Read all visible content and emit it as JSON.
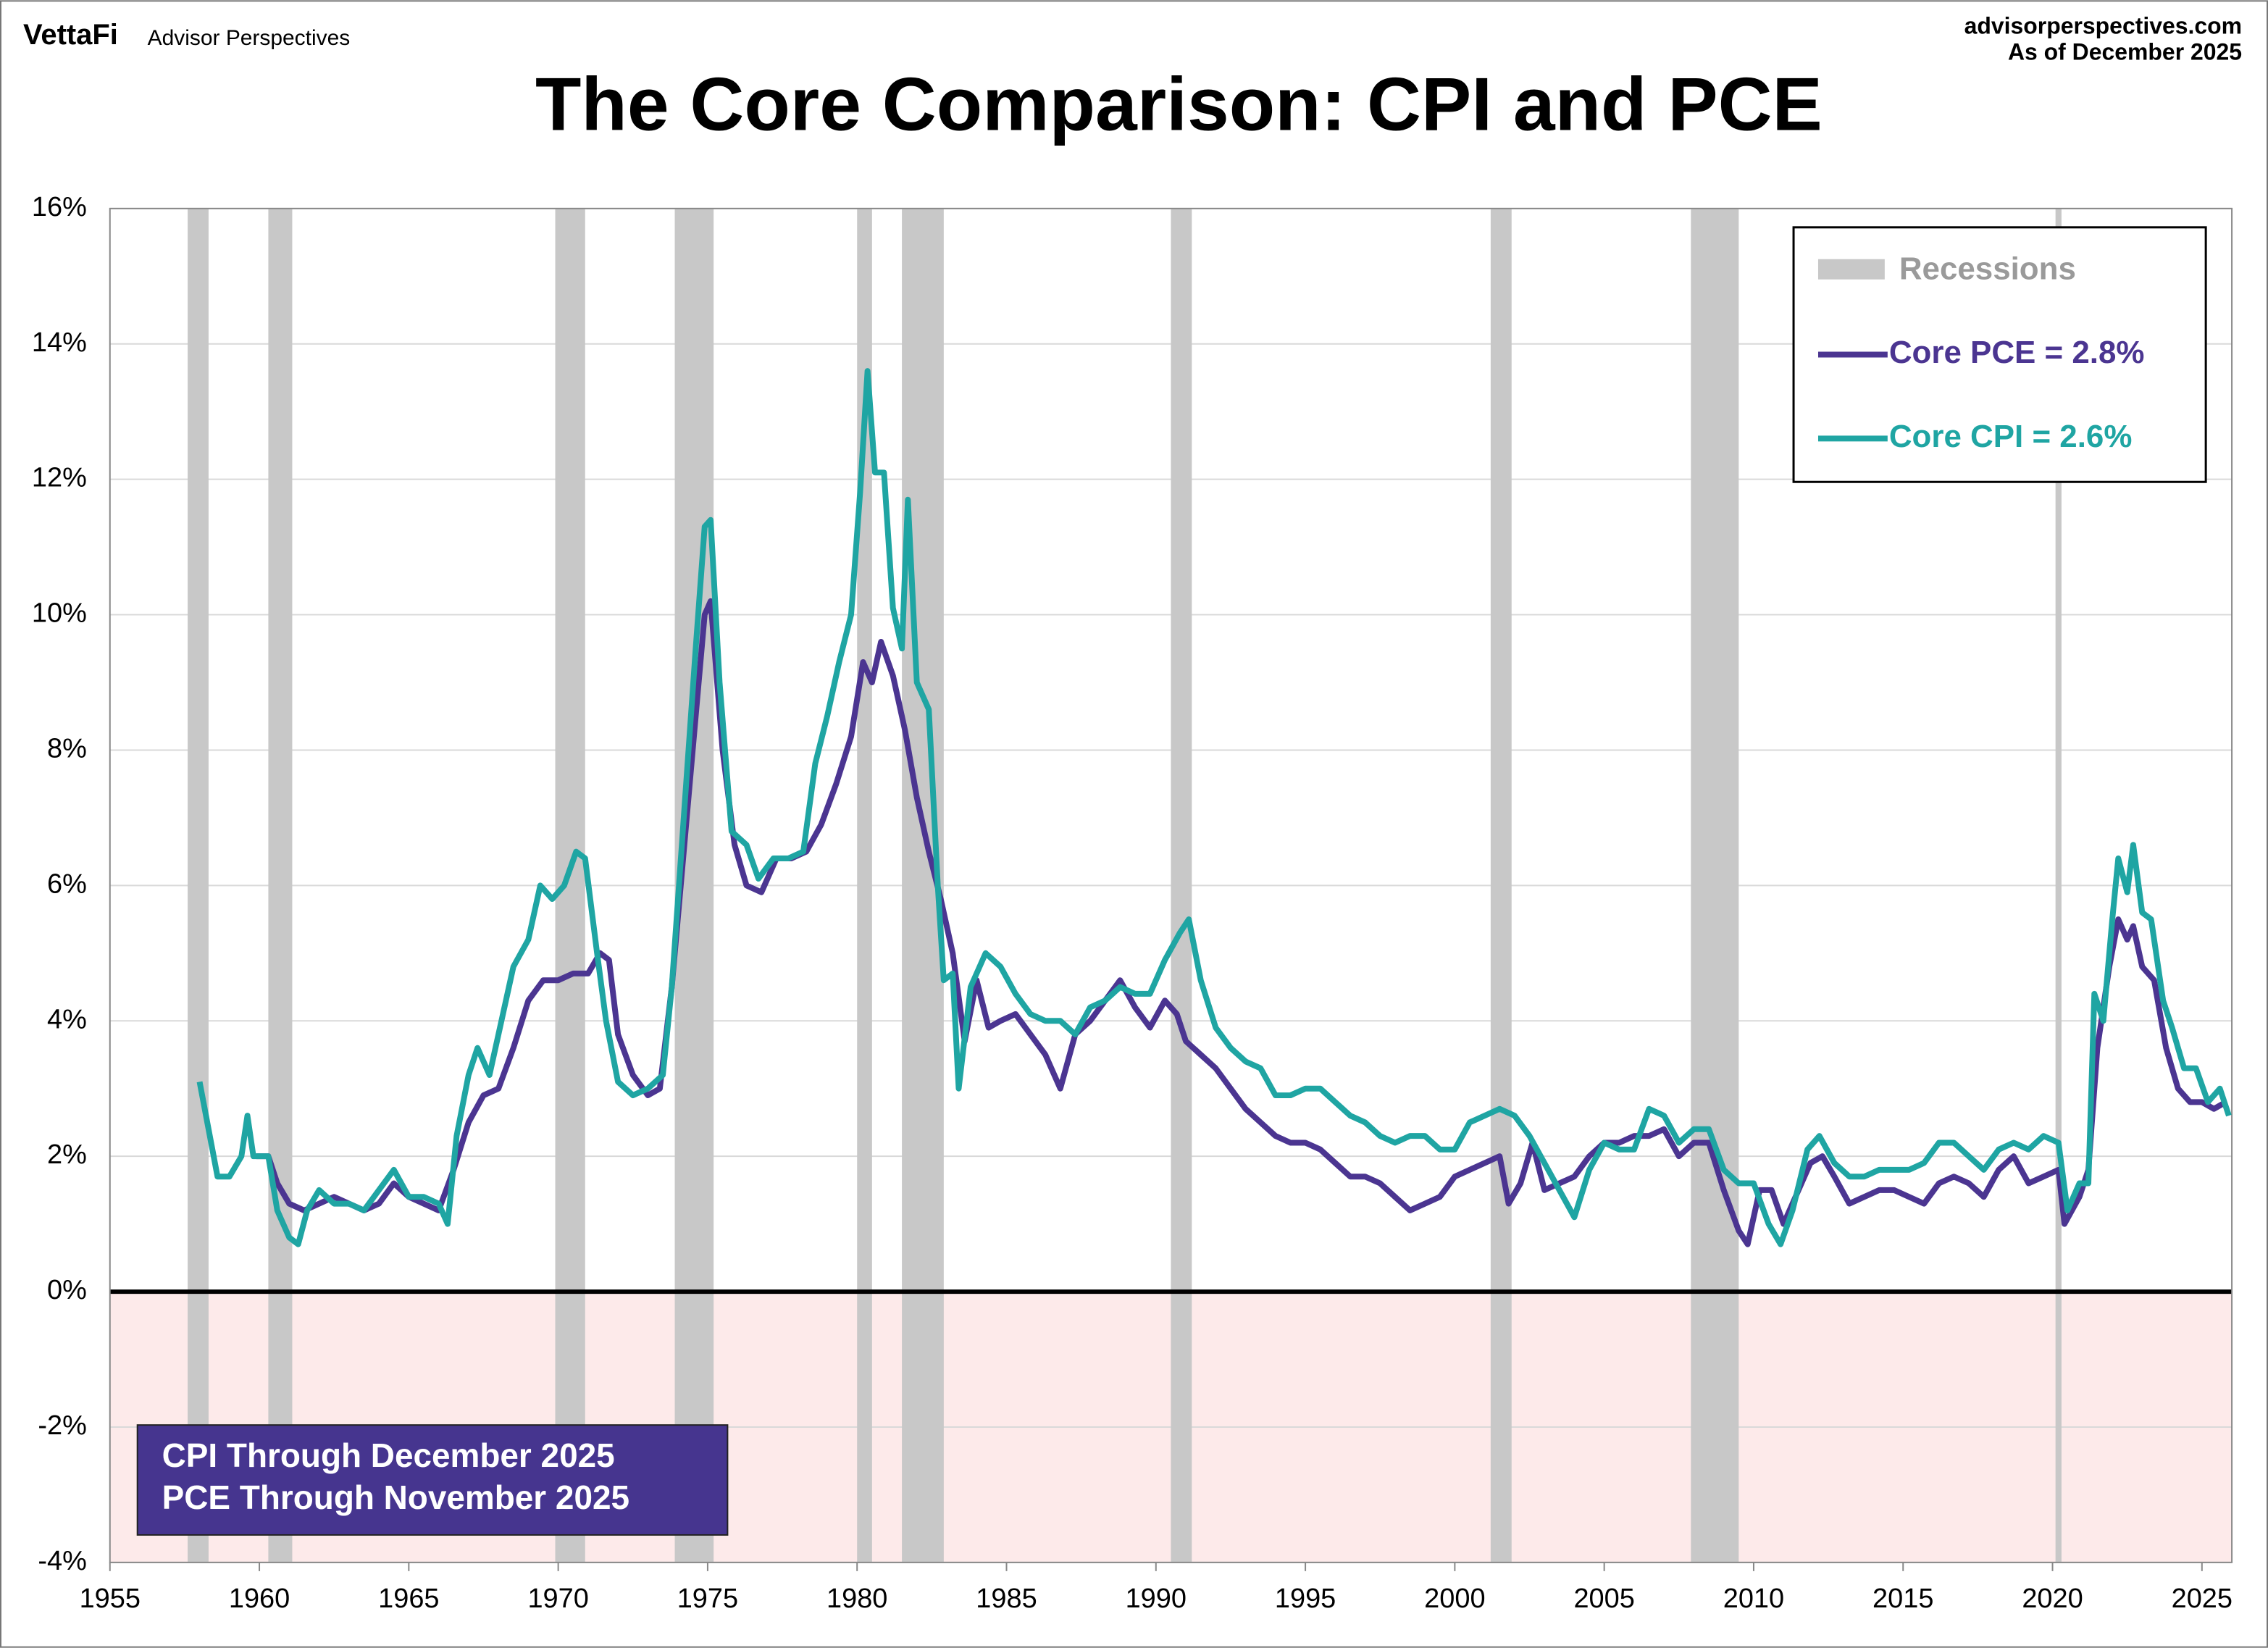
{
  "header": {
    "brand": "VettaFi",
    "brand_sub": "Advisor Perspectives",
    "site": "advisorperspectives.com",
    "as_of": "As of December 2025"
  },
  "chart_data": {
    "type": "line",
    "title": "The Core Comparison: CPI and PCE",
    "xlim": [
      1955,
      2026
    ],
    "xticks": [
      1955,
      1960,
      1965,
      1970,
      1975,
      1980,
      1985,
      1990,
      1995,
      2000,
      2005,
      2010,
      2015,
      2020,
      2025
    ],
    "ylim": [
      -4,
      16
    ],
    "yticks": [
      {
        "value": -4,
        "label": "-4%"
      },
      {
        "value": -2,
        "label": "-2%"
      },
      {
        "value": 0,
        "label": "0%"
      },
      {
        "value": 2,
        "label": "2%"
      },
      {
        "value": 4,
        "label": "4%"
      },
      {
        "value": 6,
        "label": "6%"
      },
      {
        "value": 8,
        "label": "8%"
      },
      {
        "value": 10,
        "label": "10%"
      },
      {
        "value": 12,
        "label": "12%"
      },
      {
        "value": 14,
        "label": "14%"
      },
      {
        "value": 16,
        "label": "16%"
      }
    ],
    "grid": true,
    "legend": "upper right",
    "recession_label": "Recessions",
    "recession_color": "#c8c8c8",
    "recessions": [
      [
        1957.6,
        1958.3
      ],
      [
        1960.3,
        1961.1
      ],
      [
        1969.9,
        1970.9
      ],
      [
        1973.9,
        1975.2
      ],
      [
        1980.0,
        1980.5
      ],
      [
        1981.5,
        1982.9
      ],
      [
        1990.5,
        1991.2
      ],
      [
        2001.2,
        2001.9
      ],
      [
        2007.9,
        2009.5
      ],
      [
        2020.1,
        2020.3
      ]
    ],
    "note": [
      "CPI Through December 2025",
      "PCE Through November 2025"
    ],
    "series": [
      {
        "name": "Core PCE = 2.8%",
        "color": "#4b3591",
        "x": [
          1959.9,
          1960.3,
          1960.6,
          1961.0,
          1961.5,
          1962.0,
          1962.5,
          1963.0,
          1963.5,
          1964.0,
          1964.5,
          1965.0,
          1965.5,
          1966.0,
          1966.5,
          1967.0,
          1967.5,
          1968.0,
          1968.5,
          1969.0,
          1969.5,
          1970.0,
          1970.5,
          1971.0,
          1971.4,
          1971.7,
          1972.0,
          1972.5,
          1973.0,
          1973.4,
          1973.8,
          1974.2,
          1974.6,
          1974.9,
          1975.1,
          1975.5,
          1975.9,
          1976.3,
          1976.8,
          1977.3,
          1977.8,
          1978.3,
          1978.8,
          1979.3,
          1979.8,
          1980.2,
          1980.5,
          1980.8,
          1981.2,
          1981.6,
          1982.0,
          1982.4,
          1982.8,
          1983.2,
          1983.6,
          1984.0,
          1984.4,
          1984.8,
          1985.3,
          1985.8,
          1986.3,
          1986.8,
          1987.3,
          1987.8,
          1988.3,
          1988.8,
          1989.3,
          1989.8,
          1990.3,
          1990.7,
          1991.0,
          1991.5,
          1992.0,
          1992.5,
          1993.0,
          1993.5,
          1994.0,
          1994.5,
          1995.0,
          1995.5,
          1996.0,
          1996.5,
          1997.0,
          1997.5,
          1998.0,
          1998.5,
          1999.0,
          1999.5,
          2000.0,
          2000.5,
          2001.0,
          2001.5,
          2001.8,
          2002.2,
          2002.6,
          2003.0,
          2003.5,
          2004.0,
          2004.5,
          2005.0,
          2005.5,
          2006.0,
          2006.5,
          2007.0,
          2007.5,
          2008.0,
          2008.5,
          2009.0,
          2009.5,
          2009.8,
          2010.2,
          2010.6,
          2011.0,
          2011.5,
          2011.9,
          2012.3,
          2012.7,
          2013.2,
          2013.7,
          2014.2,
          2014.7,
          2015.2,
          2015.7,
          2016.2,
          2016.7,
          2017.2,
          2017.7,
          2018.2,
          2018.7,
          2019.2,
          2019.7,
          2020.2,
          2020.4,
          2020.9,
          2021.2,
          2021.5,
          2021.9,
          2022.2,
          2022.5,
          2022.7,
          2023.0,
          2023.4,
          2023.8,
          2024.2,
          2024.6,
          2025.0,
          2025.4,
          2025.8
        ],
        "values": [
          2.0,
          2.0,
          1.6,
          1.3,
          1.2,
          1.3,
          1.4,
          1.3,
          1.2,
          1.3,
          1.6,
          1.4,
          1.3,
          1.2,
          1.8,
          2.5,
          2.9,
          3.0,
          3.6,
          4.3,
          4.6,
          4.6,
          4.7,
          4.7,
          5.0,
          4.9,
          3.8,
          3.2,
          2.9,
          3.0,
          4.5,
          6.5,
          8.5,
          10.0,
          10.2,
          8.0,
          6.6,
          6.0,
          5.9,
          6.4,
          6.4,
          6.5,
          6.9,
          7.5,
          8.2,
          9.3,
          9.0,
          9.6,
          9.1,
          8.3,
          7.3,
          6.5,
          5.8,
          5.0,
          3.7,
          4.6,
          3.9,
          4.0,
          4.1,
          3.8,
          3.5,
          3.0,
          3.8,
          4.0,
          4.3,
          4.6,
          4.2,
          3.9,
          4.3,
          4.1,
          3.7,
          3.5,
          3.3,
          3.0,
          2.7,
          2.5,
          2.3,
          2.2,
          2.2,
          2.1,
          1.9,
          1.7,
          1.7,
          1.6,
          1.4,
          1.2,
          1.3,
          1.4,
          1.7,
          1.8,
          1.9,
          2.0,
          1.3,
          1.6,
          2.2,
          1.5,
          1.6,
          1.7,
          2.0,
          2.2,
          2.2,
          2.3,
          2.3,
          2.4,
          2.0,
          2.2,
          2.2,
          1.5,
          0.9,
          0.7,
          1.5,
          1.5,
          1.0,
          1.5,
          1.9,
          2.0,
          1.7,
          1.3,
          1.4,
          1.5,
          1.5,
          1.4,
          1.3,
          1.6,
          1.7,
          1.6,
          1.4,
          1.8,
          2.0,
          1.6,
          1.7,
          1.8,
          1.0,
          1.4,
          1.8,
          3.6,
          4.8,
          5.5,
          5.2,
          5.4,
          4.8,
          4.6,
          3.6,
          3.0,
          2.8,
          2.8,
          2.7,
          2.8
        ]
      },
      {
        "name": "Core CPI =  2.6%",
        "color": "#1fa5a3",
        "x": [
          1958.0,
          1958.3,
          1958.6,
          1959.0,
          1959.4,
          1959.6,
          1959.8,
          1960.3,
          1960.6,
          1961.0,
          1961.3,
          1961.6,
          1962.0,
          1962.5,
          1963.0,
          1963.5,
          1964.0,
          1964.5,
          1965.0,
          1965.5,
          1966.0,
          1966.3,
          1966.6,
          1967.0,
          1967.3,
          1967.7,
          1968.0,
          1968.5,
          1969.0,
          1969.4,
          1969.8,
          1970.2,
          1970.6,
          1970.9,
          1971.3,
          1971.6,
          1972.0,
          1972.5,
          1973.0,
          1973.5,
          1973.8,
          1974.2,
          1974.6,
          1974.9,
          1975.1,
          1975.4,
          1975.8,
          1976.3,
          1976.7,
          1977.2,
          1977.7,
          1978.2,
          1978.6,
          1979.0,
          1979.4,
          1979.8,
          1980.1,
          1980.35,
          1980.6,
          1980.9,
          1981.2,
          1981.5,
          1981.7,
          1982.0,
          1982.4,
          1982.7,
          1982.9,
          1983.2,
          1983.4,
          1983.8,
          1984.3,
          1984.8,
          1985.3,
          1985.8,
          1986.3,
          1986.8,
          1987.3,
          1987.8,
          1988.3,
          1988.8,
          1989.3,
          1989.8,
          1990.3,
          1990.8,
          1991.1,
          1991.5,
          1992.0,
          1992.5,
          1993.0,
          1993.5,
          1994.0,
          1994.5,
          1995.0,
          1995.5,
          1996.0,
          1996.5,
          1997.0,
          1997.5,
          1998.0,
          1998.5,
          1999.0,
          1999.5,
          2000.0,
          2000.5,
          2001.0,
          2001.5,
          2002.0,
          2002.5,
          2003.0,
          2003.5,
          2004.0,
          2004.5,
          2005.0,
          2005.5,
          2006.0,
          2006.5,
          2007.0,
          2007.5,
          2008.0,
          2008.5,
          2009.0,
          2009.5,
          2010.0,
          2010.5,
          2010.9,
          2011.3,
          2011.8,
          2012.2,
          2012.7,
          2013.2,
          2013.7,
          2014.2,
          2014.7,
          2015.2,
          2015.7,
          2016.2,
          2016.7,
          2017.2,
          2017.7,
          2018.2,
          2018.7,
          2019.2,
          2019.7,
          2020.2,
          2020.5,
          2020.9,
          2021.2,
          2021.4,
          2021.7,
          2022.0,
          2022.2,
          2022.5,
          2022.7,
          2023.0,
          2023.3,
          2023.7,
          2024.0,
          2024.4,
          2024.8,
          2025.2,
          2025.6,
          2025.9
        ],
        "values": [
          3.1,
          2.4,
          1.7,
          1.7,
          2.0,
          2.6,
          2.0,
          2.0,
          1.2,
          0.8,
          0.7,
          1.2,
          1.5,
          1.3,
          1.3,
          1.2,
          1.5,
          1.8,
          1.4,
          1.4,
          1.3,
          1.0,
          2.3,
          3.2,
          3.6,
          3.2,
          3.8,
          4.8,
          5.2,
          6.0,
          5.8,
          6.0,
          6.5,
          6.4,
          5.0,
          4.0,
          3.1,
          2.9,
          3.0,
          3.2,
          4.5,
          7.0,
          9.5,
          11.3,
          11.4,
          9.0,
          6.8,
          6.6,
          6.1,
          6.4,
          6.4,
          6.5,
          7.8,
          8.5,
          9.3,
          10.0,
          11.8,
          13.6,
          12.1,
          12.1,
          10.1,
          9.5,
          11.7,
          9.0,
          8.6,
          6.0,
          4.6,
          4.7,
          3.0,
          4.5,
          5.0,
          4.8,
          4.4,
          4.1,
          4.0,
          4.0,
          3.8,
          4.2,
          4.3,
          4.5,
          4.4,
          4.4,
          4.9,
          5.3,
          5.5,
          4.6,
          3.9,
          3.6,
          3.4,
          3.3,
          2.9,
          2.9,
          3.0,
          3.0,
          2.8,
          2.6,
          2.5,
          2.3,
          2.2,
          2.3,
          2.3,
          2.1,
          2.1,
          2.5,
          2.6,
          2.7,
          2.6,
          2.3,
          1.9,
          1.5,
          1.1,
          1.8,
          2.2,
          2.1,
          2.1,
          2.7,
          2.6,
          2.2,
          2.4,
          2.4,
          1.8,
          1.6,
          1.6,
          1.0,
          0.7,
          1.2,
          2.1,
          2.3,
          1.9,
          1.7,
          1.7,
          1.8,
          1.8,
          1.8,
          1.9,
          2.2,
          2.2,
          2.0,
          1.8,
          2.1,
          2.2,
          2.1,
          2.3,
          2.2,
          1.2,
          1.6,
          1.6,
          4.4,
          4.0,
          5.5,
          6.4,
          5.9,
          6.6,
          5.6,
          5.5,
          4.3,
          3.9,
          3.3,
          3.3,
          2.8,
          3.0,
          2.6
        ]
      }
    ]
  }
}
